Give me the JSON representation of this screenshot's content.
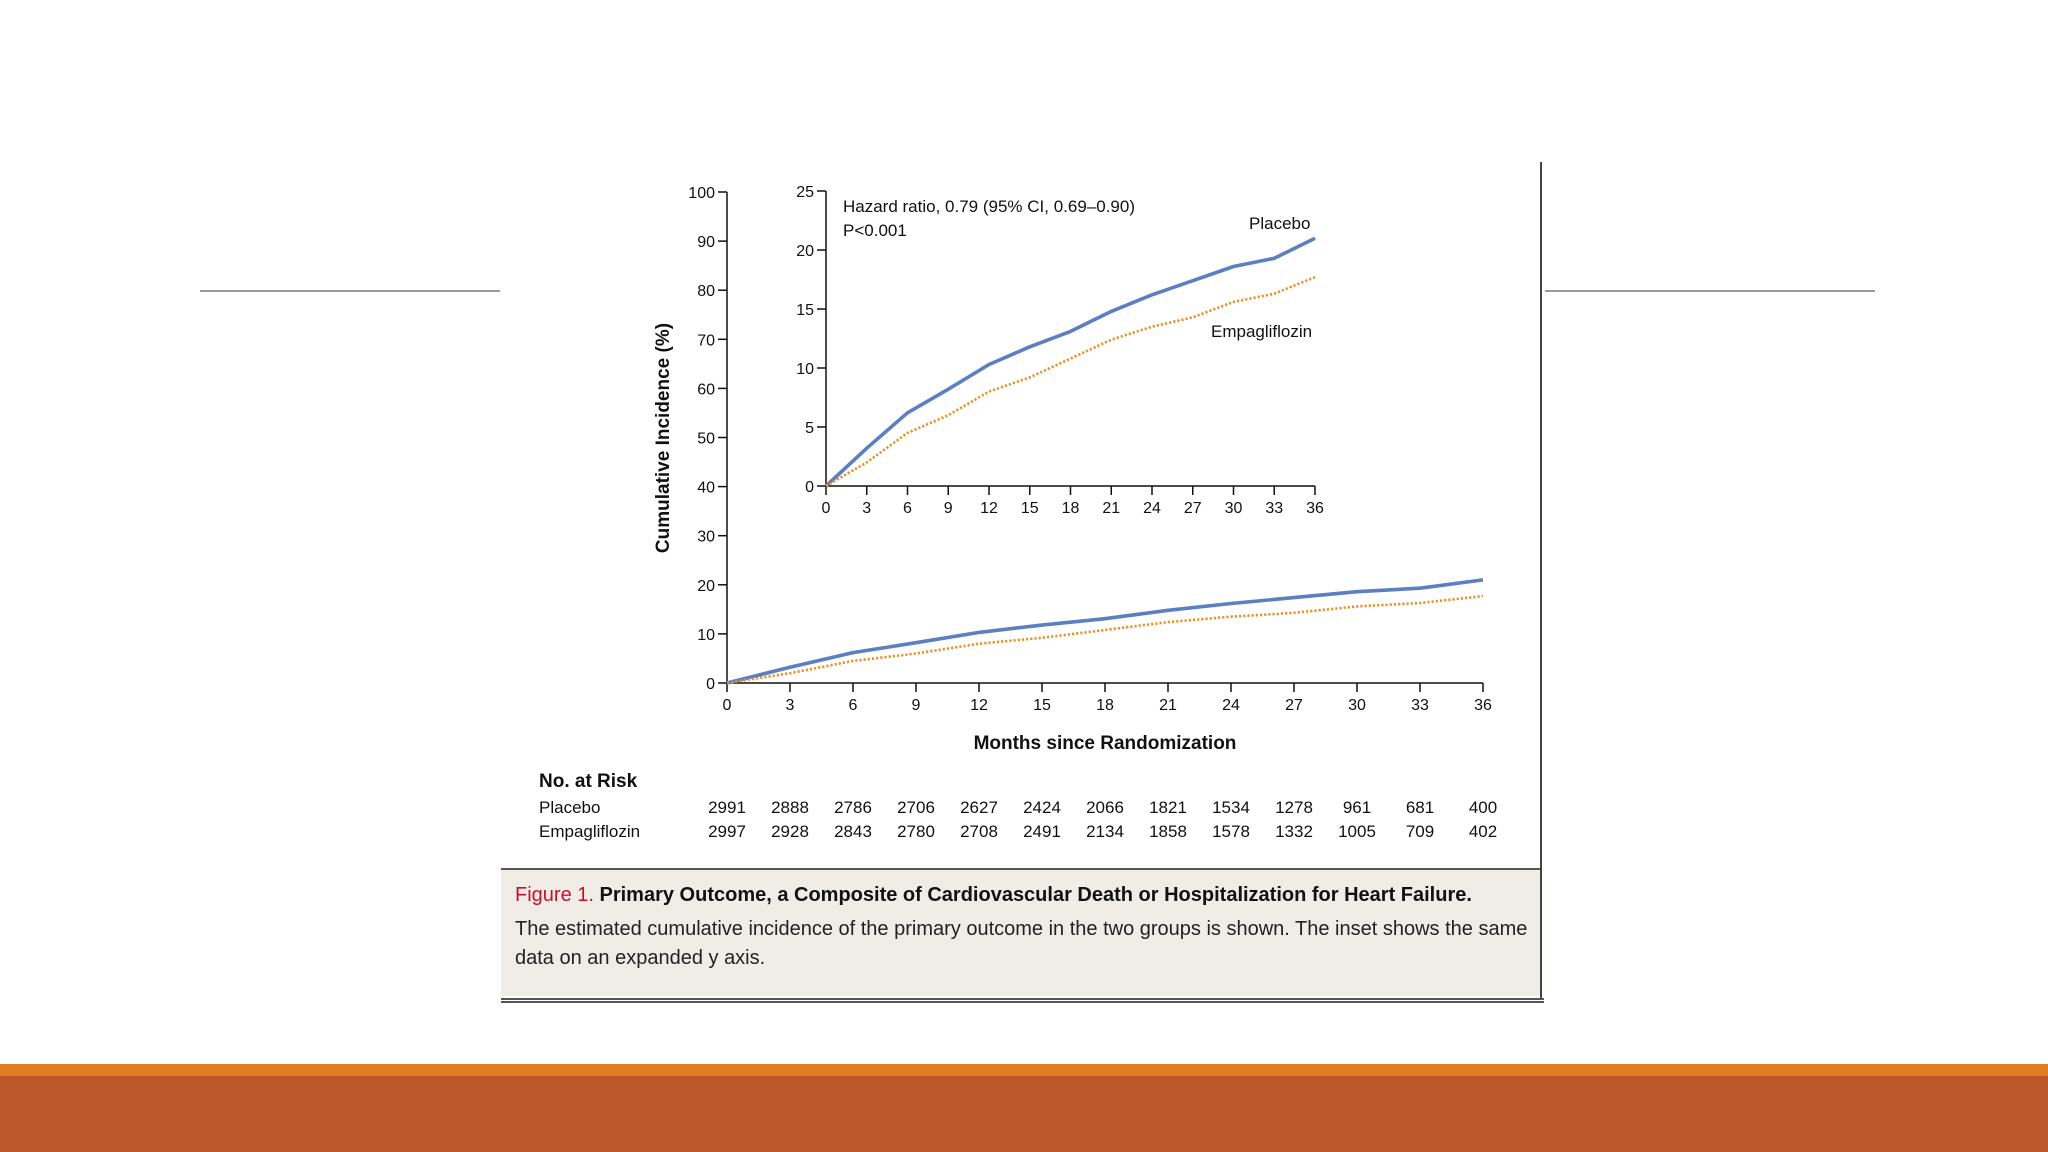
{
  "colors": {
    "placebo": "#5b7fc0",
    "empagliflozin": "#e8912b",
    "footer_band": "#bd582c",
    "footer_stripe": "#e07d24",
    "figure_label": "#c8102e"
  },
  "chart_data": [
    {
      "type": "line",
      "xlabel": "Months since Randomization",
      "ylabel": "Cumulative Incidence (%)",
      "xlim": [
        0,
        36
      ],
      "ylim": [
        0,
        100
      ],
      "x_ticks": [
        "0",
        "3",
        "6",
        "9",
        "12",
        "15",
        "18",
        "21",
        "24",
        "27",
        "30",
        "33",
        "36"
      ],
      "y_ticks": [
        "0",
        "10",
        "20",
        "30",
        "40",
        "50",
        "60",
        "70",
        "80",
        "90",
        "100"
      ],
      "grid": false,
      "x": [
        0,
        3,
        6,
        9,
        12,
        15,
        18,
        21,
        24,
        27,
        30,
        33,
        36
      ],
      "series": [
        {
          "name": "Placebo",
          "style": "solid",
          "values": [
            0,
            3.2,
            6.2,
            8.2,
            10.3,
            11.8,
            13.1,
            14.8,
            16.2,
            17.4,
            18.6,
            19.3,
            21.0
          ]
        },
        {
          "name": "Empagliflozin",
          "style": "dotted",
          "values": [
            0,
            2.0,
            4.5,
            6.0,
            8.0,
            9.2,
            10.8,
            12.4,
            13.5,
            14.3,
            15.6,
            16.3,
            17.7
          ]
        }
      ]
    },
    {
      "type": "line",
      "inset": true,
      "xlim": [
        0,
        36
      ],
      "ylim": [
        0,
        25
      ],
      "x_ticks": [
        "0",
        "3",
        "6",
        "9",
        "12",
        "15",
        "18",
        "21",
        "24",
        "27",
        "30",
        "33",
        "36"
      ],
      "y_ticks": [
        "0",
        "5",
        "10",
        "15",
        "20",
        "25"
      ],
      "grid": false,
      "annotation": [
        "Hazard ratio, 0.79 (95% CI, 0.69–0.90)",
        "P<0.001"
      ],
      "series_labels": [
        "Placebo",
        "Empagliflozin"
      ],
      "x": [
        0,
        3,
        6,
        9,
        12,
        15,
        18,
        21,
        24,
        27,
        30,
        33,
        36
      ],
      "series": [
        {
          "name": "Placebo",
          "style": "solid",
          "values": [
            0,
            3.2,
            6.2,
            8.2,
            10.3,
            11.8,
            13.1,
            14.8,
            16.2,
            17.4,
            18.6,
            19.3,
            21.0
          ]
        },
        {
          "name": "Empagliflozin",
          "style": "dotted",
          "values": [
            0,
            2.0,
            4.5,
            6.0,
            8.0,
            9.2,
            10.8,
            12.4,
            13.5,
            14.3,
            15.6,
            16.3,
            17.7
          ]
        }
      ]
    }
  ],
  "risk_table": {
    "title": "No. at Risk",
    "rows": [
      {
        "label": "Placebo",
        "values": [
          "2991",
          "2888",
          "2786",
          "2706",
          "2627",
          "2424",
          "2066",
          "1821",
          "1534",
          "1278",
          "961",
          "681",
          "400"
        ]
      },
      {
        "label": "Empagliflozin",
        "values": [
          "2997",
          "2928",
          "2843",
          "2780",
          "2708",
          "2491",
          "2134",
          "1858",
          "1578",
          "1332",
          "1005",
          "709",
          "402"
        ]
      }
    ]
  },
  "caption": {
    "label": "Figure 1.",
    "title": "Primary Outcome, a Composite of Cardiovascular Death or Hospitalization for Heart Failure.",
    "text": "The estimated cumulative incidence of the primary outcome in the two groups is shown. The inset shows the same data on an expanded y axis."
  }
}
